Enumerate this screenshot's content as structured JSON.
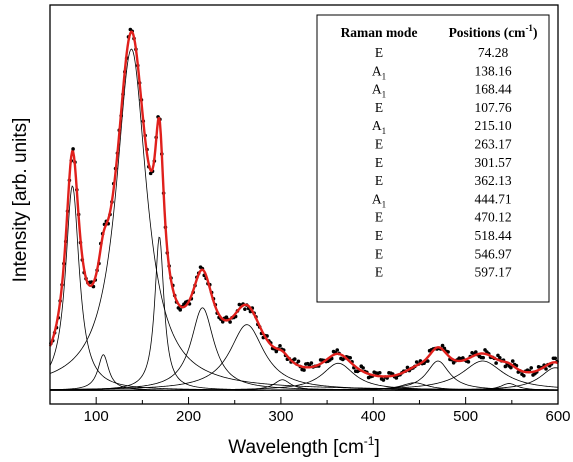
{
  "chart_data": {
    "type": "line",
    "xlabel": "Wavelength [cm",
    "xlabel_sup": "-1",
    "xlabel_close": "]",
    "ylabel": "Intensity [arb. units]",
    "xlim": [
      50,
      600
    ],
    "ylim": [
      0,
      1
    ],
    "x_ticks": [
      100,
      200,
      300,
      400,
      500,
      600
    ],
    "x_tick_labels": [
      "100",
      "200",
      "300",
      "400",
      "500",
      "600"
    ],
    "grid": false,
    "background": 0.018,
    "colors": {
      "fit": "#e0201c",
      "data": "#000000",
      "component": "#000000",
      "axis": "#000000"
    },
    "components": [
      {
        "center": 74.28,
        "width": 18,
        "amplitude": 0.545
      },
      {
        "center": 107.76,
        "width": 14,
        "amplitude": 0.095
      },
      {
        "center": 138.16,
        "width": 40,
        "amplitude": 0.91
      },
      {
        "center": 168.44,
        "width": 12,
        "amplitude": 0.41
      },
      {
        "center": 215.1,
        "width": 30,
        "amplitude": 0.22
      },
      {
        "center": 263.17,
        "width": 45,
        "amplitude": 0.175
      },
      {
        "center": 301.57,
        "width": 22,
        "amplitude": 0.028
      },
      {
        "center": 362.13,
        "width": 42,
        "amplitude": 0.072
      },
      {
        "center": 444.71,
        "width": 35,
        "amplitude": 0.02
      },
      {
        "center": 470.12,
        "width": 30,
        "amplitude": 0.078
      },
      {
        "center": 518.44,
        "width": 55,
        "amplitude": 0.078
      },
      {
        "center": 546.97,
        "width": 22,
        "amplitude": 0.018
      },
      {
        "center": 597.17,
        "width": 40,
        "amplitude": 0.06
      }
    ],
    "table": {
      "header_mode": "Raman mode",
      "header_position": "Positions (cm",
      "header_position_sup": "-1",
      "header_position_close": ")",
      "rows": [
        {
          "mode": "E",
          "sub": "",
          "position": "74.28"
        },
        {
          "mode": "A",
          "sub": "1",
          "position": "138.16"
        },
        {
          "mode": "A",
          "sub": "1",
          "position": "168.44"
        },
        {
          "mode": "E",
          "sub": "",
          "position": "107.76"
        },
        {
          "mode": "A",
          "sub": "1",
          "position": "215.10"
        },
        {
          "mode": "E",
          "sub": "",
          "position": "263.17"
        },
        {
          "mode": "E",
          "sub": "",
          "position": "301.57"
        },
        {
          "mode": "E",
          "sub": "",
          "position": "362.13"
        },
        {
          "mode": "A",
          "sub": "1",
          "position": "444.71"
        },
        {
          "mode": "E",
          "sub": "",
          "position": "470.12"
        },
        {
          "mode": "E",
          "sub": "",
          "position": "518.44"
        },
        {
          "mode": "E",
          "sub": "",
          "position": "546.97"
        },
        {
          "mode": "E",
          "sub": "",
          "position": "597.17"
        }
      ]
    }
  }
}
